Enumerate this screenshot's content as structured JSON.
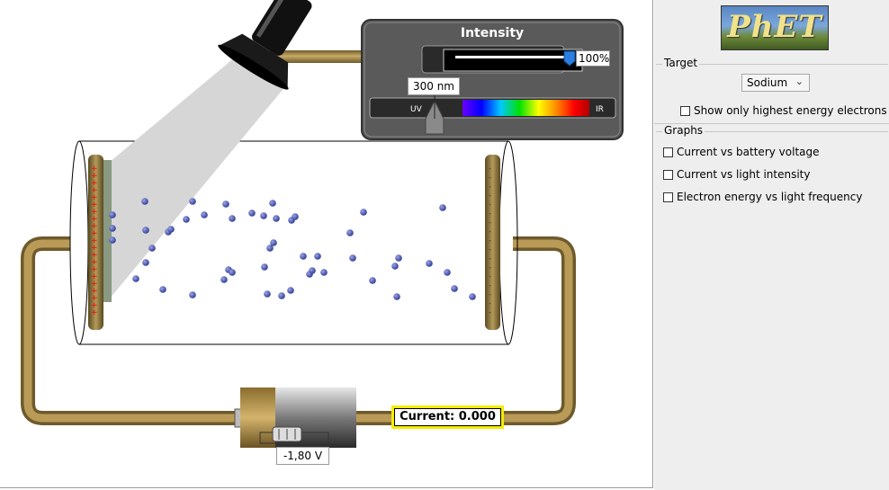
{
  "simulation": {
    "intensity_title": "Intensity",
    "intensity_value": "100%",
    "intensity_fraction": 1.0,
    "wavelength": "300 nm",
    "spectrum_uv_label": "UV",
    "spectrum_ir_label": "IR",
    "current_label": "Current:  0.000",
    "battery_voltage": "-1,80 V",
    "colors": {
      "wire": "#a88b4a",
      "electron": "#3c4aa0",
      "light_beam": "#d6d6d6",
      "highlight_box": "#f5ec00"
    }
  },
  "control_panel": {
    "logo": "PhET",
    "target": {
      "group_title": "Target",
      "selected": "Sodium"
    },
    "show_highest_energy_label": "Show only highest energy electrons",
    "graphs": {
      "group_title": "Graphs",
      "options": [
        {
          "label": "Current vs battery voltage",
          "checked": false
        },
        {
          "label": "Current vs light intensity",
          "checked": false
        },
        {
          "label": "Electron energy vs light frequency",
          "checked": false
        }
      ]
    }
  }
}
